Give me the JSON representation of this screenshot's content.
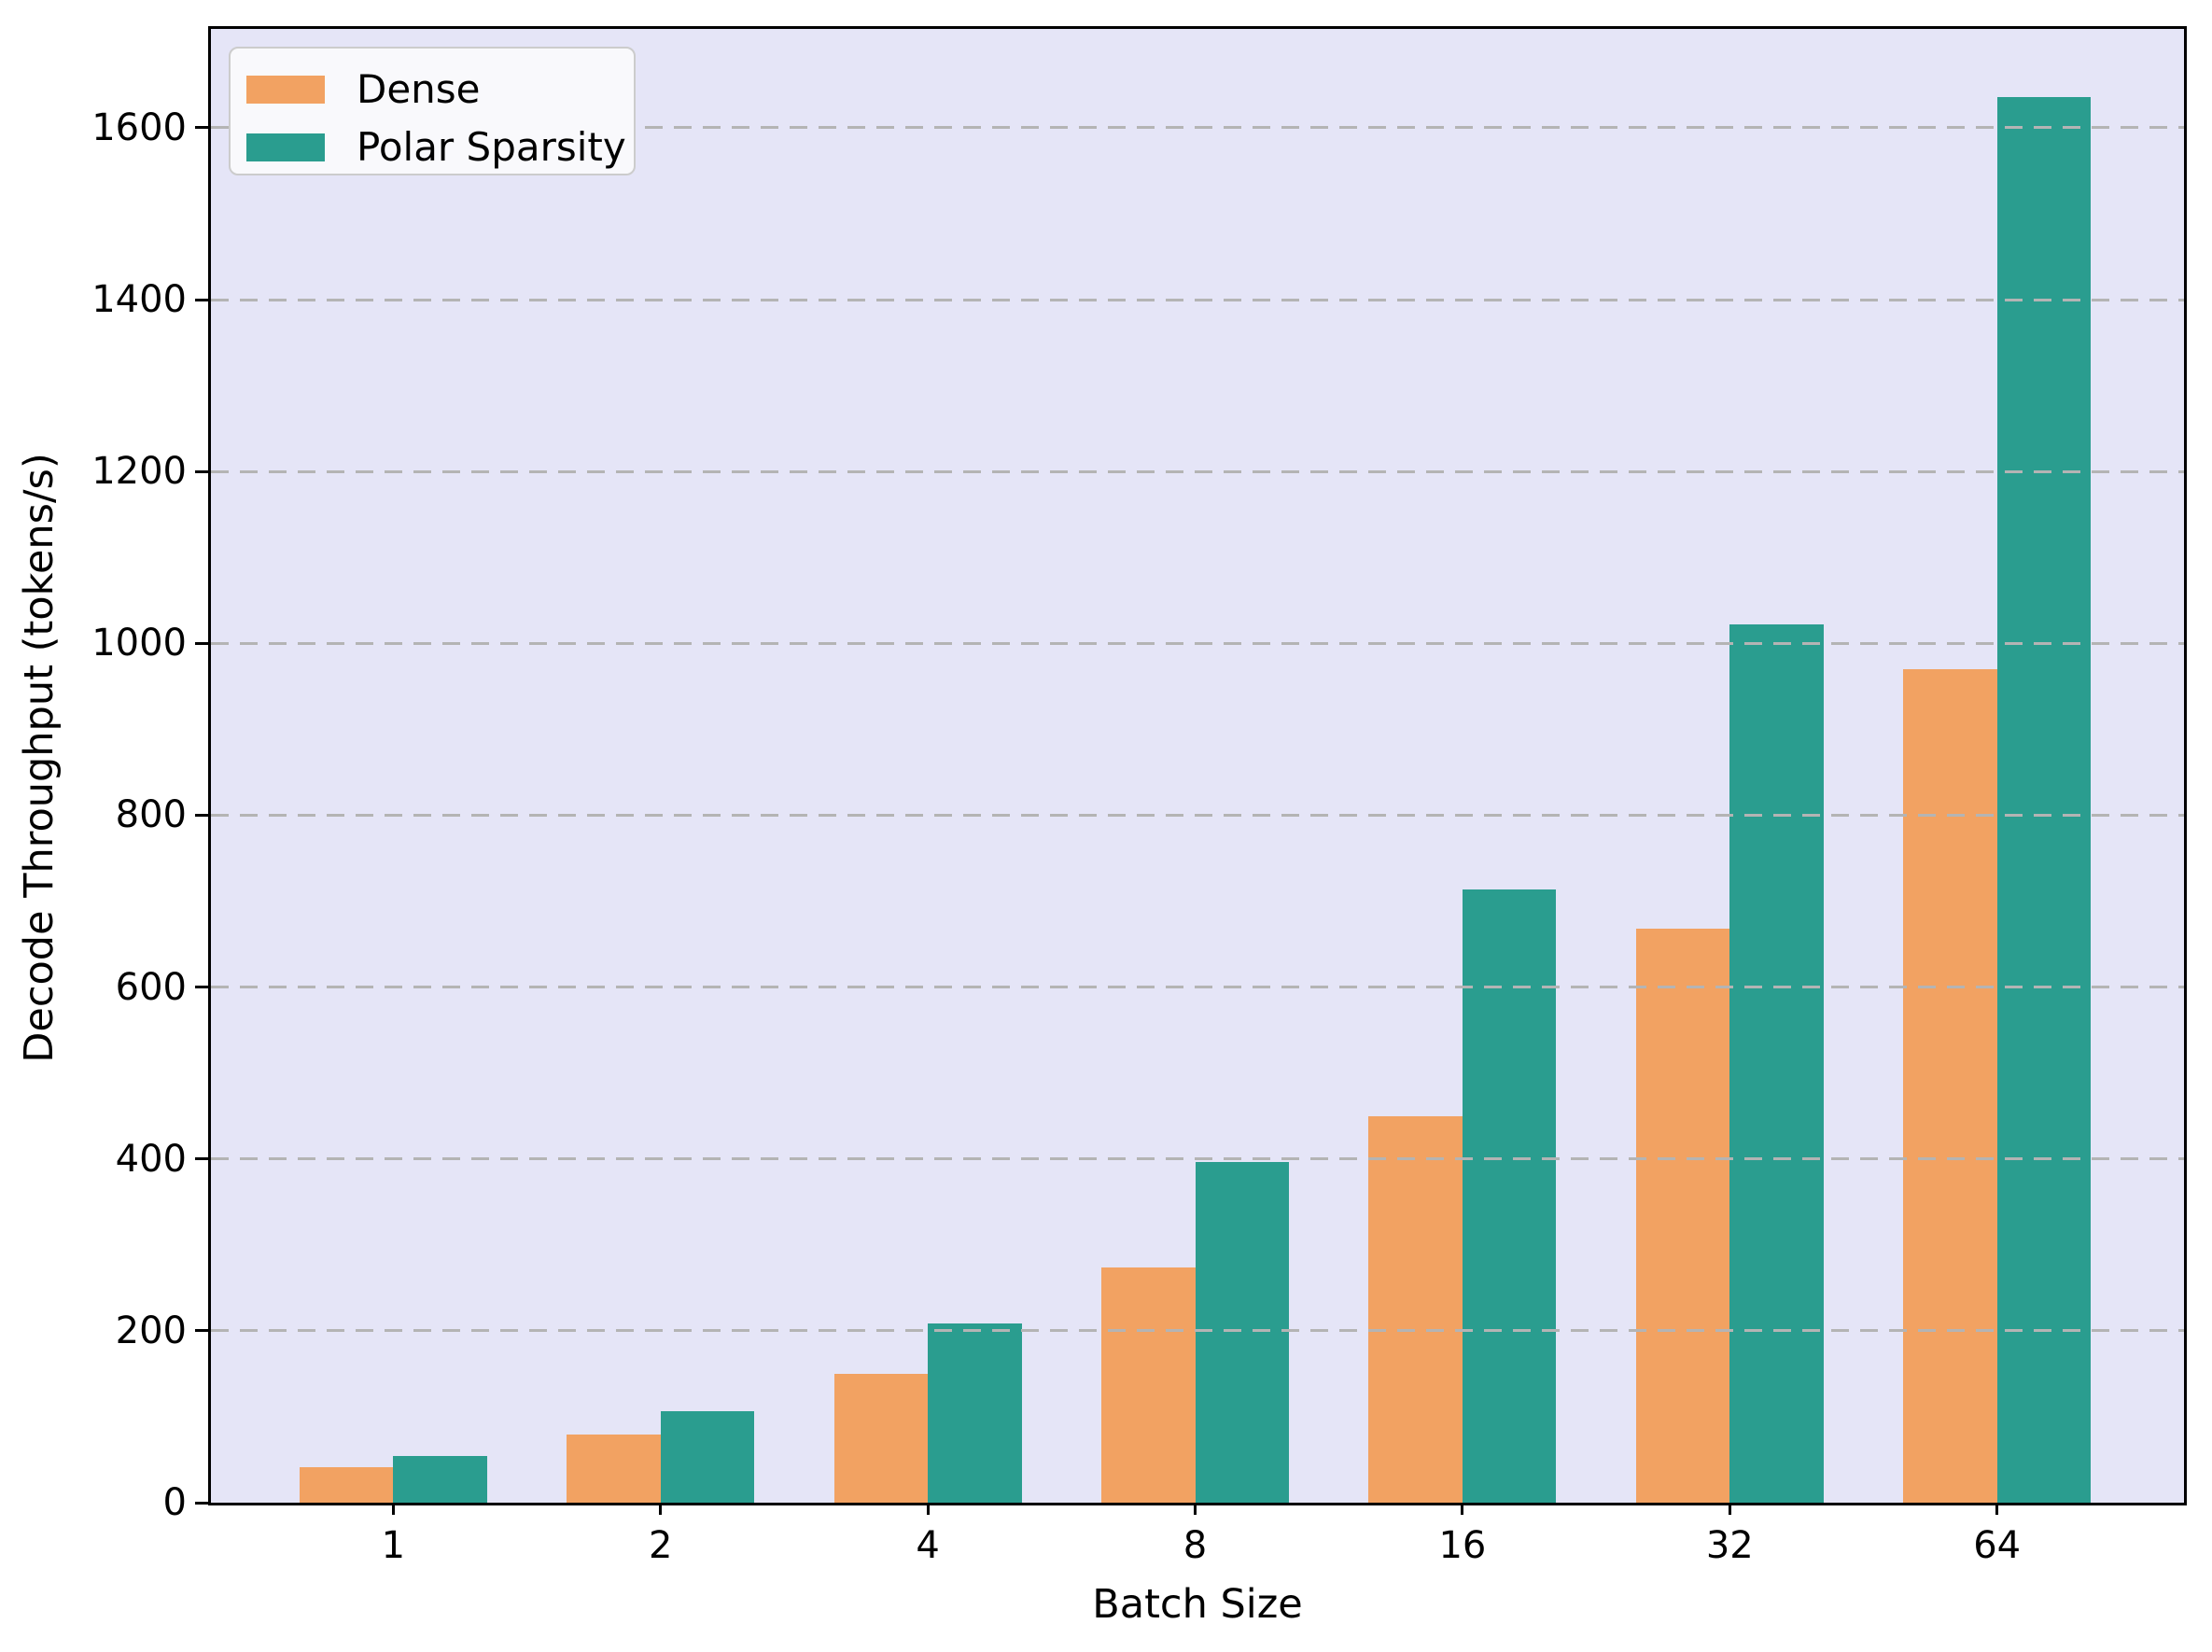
{
  "chart_data": {
    "type": "bar",
    "title": "",
    "xlabel": "Batch Size",
    "ylabel": "Decode Throughput (tokens/s)",
    "categories": [
      "1",
      "2",
      "4",
      "8",
      "16",
      "32",
      "64"
    ],
    "series": [
      {
        "name": "Dense",
        "color": "#F2A262",
        "values": [
          41,
          79,
          150,
          274,
          450,
          668,
          970
        ]
      },
      {
        "name": "Polar Sparsity",
        "color": "#2A9D8F",
        "values": [
          54,
          106,
          208,
          396,
          714,
          1022,
          1636
        ]
      }
    ],
    "yticks": [
      0,
      200,
      400,
      600,
      800,
      1000,
      1200,
      1400,
      1600
    ],
    "ylim": [
      0,
      1715
    ],
    "grid": "horizontal-dashed",
    "legend_position": "upper-left",
    "colors": {
      "plot_background": "#E5E5F7",
      "grid_color": "#B4B4B4",
      "spine_color": "#000000",
      "legend_background": "#F9F9FC",
      "legend_border": "#CCCCCC"
    }
  }
}
